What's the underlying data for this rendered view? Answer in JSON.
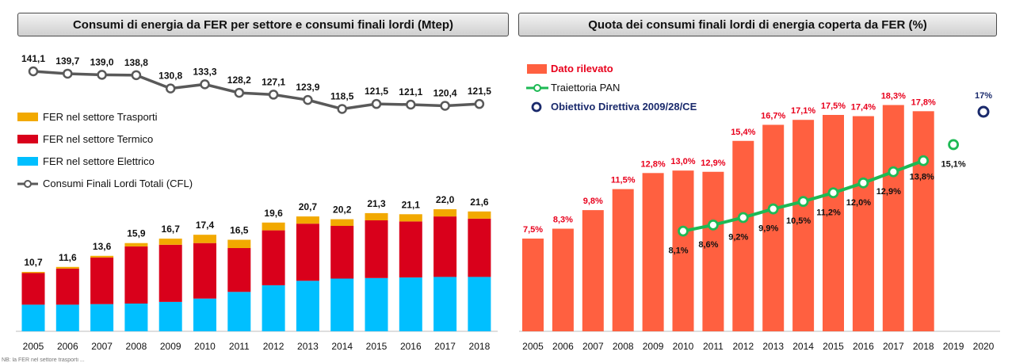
{
  "footnote": "NB: la FER nel settore trasporti ...",
  "chart_data": [
    {
      "type": "bar",
      "stacked": true,
      "title": "Consumi di energia da FER per settore e consumi finali lordi (Mtep)",
      "categories": [
        "2005",
        "2006",
        "2007",
        "2008",
        "2009",
        "2010",
        "2011",
        "2012",
        "2013",
        "2014",
        "2015",
        "2016",
        "2017",
        "2018"
      ],
      "series": [
        {
          "name": "FER nel settore Elettrico",
          "color": "#00bfff",
          "values": [
            4.8,
            4.8,
            4.9,
            5.0,
            5.3,
            5.9,
            7.1,
            8.3,
            9.1,
            9.5,
            9.6,
            9.7,
            9.8,
            9.8
          ]
        },
        {
          "name": "FER nel settore Termico",
          "color": "#d9001b",
          "values": [
            5.7,
            6.5,
            8.4,
            10.3,
            10.3,
            10.0,
            7.9,
            9.9,
            10.3,
            9.5,
            10.4,
            10.1,
            10.9,
            10.5
          ]
        },
        {
          "name": "FER nel settore Trasporti",
          "color": "#f2a900",
          "values": [
            0.2,
            0.3,
            0.3,
            0.6,
            1.1,
            1.5,
            1.5,
            1.4,
            1.3,
            1.2,
            1.3,
            1.3,
            1.3,
            1.3
          ]
        }
      ],
      "totals": [
        "10,7",
        "11,6",
        "13,6",
        "15,9",
        "16,7",
        "17,4",
        "16,5",
        "19,6",
        "20,7",
        "20,2",
        "21,3",
        "21,1",
        "22,0",
        "21,6"
      ],
      "line": {
        "name": "Consumi Finali Lordi Totali (CFL)",
        "color": "#595959",
        "values": [
          141.1,
          139.7,
          139.0,
          138.8,
          130.8,
          133.3,
          128.2,
          127.1,
          123.9,
          118.5,
          121.5,
          121.1,
          120.4,
          121.5
        ],
        "labels": [
          "141,1",
          "139,7",
          "139,0",
          "138,8",
          "130,8",
          "133,3",
          "128,2",
          "127,1",
          "123,9",
          "118,5",
          "121,5",
          "121,1",
          "120,4",
          "121,5"
        ]
      },
      "legend": [
        {
          "label": "FER nel settore Trasporti",
          "kind": "rect",
          "color": "#f2a900"
        },
        {
          "label": "FER nel settore Termico",
          "kind": "rect",
          "color": "#d9001b"
        },
        {
          "label": "FER nel settore Elettrico",
          "kind": "rect",
          "color": "#00bfff"
        },
        {
          "label": "Consumi Finali Lordi Totali (CFL)",
          "kind": "line",
          "color": "#595959"
        }
      ],
      "legend_position": "left",
      "grid": false
    },
    {
      "type": "bar",
      "title": "Quota dei consumi finali lordi di energia coperta da FER (%)",
      "categories": [
        "2005",
        "2006",
        "2007",
        "2008",
        "2009",
        "2010",
        "2011",
        "2012",
        "2013",
        "2014",
        "2015",
        "2016",
        "2017",
        "2018",
        "2019",
        "2020"
      ],
      "bars": {
        "name": "Dato rilevato",
        "color": "#ff6040",
        "label_color": "#e8001c",
        "values": [
          7.5,
          8.3,
          9.8,
          11.5,
          12.8,
          13.0,
          12.9,
          15.4,
          16.7,
          17.1,
          17.5,
          17.4,
          18.3,
          17.8,
          null,
          null
        ],
        "labels": [
          "7,5%",
          "8,3%",
          "9,8%",
          "11,5%",
          "12,8%",
          "13,0%",
          "12,9%",
          "15,4%",
          "16,7%",
          "17,1%",
          "17,5%",
          "17,4%",
          "18,3%",
          "17,8%",
          "",
          ""
        ]
      },
      "line": {
        "name": "Traiettoria PAN",
        "color": "#1db954",
        "values": [
          null,
          null,
          null,
          null,
          null,
          8.1,
          8.6,
          9.2,
          9.9,
          10.5,
          11.2,
          12.0,
          12.9,
          13.8,
          15.1,
          null
        ],
        "labels": [
          "",
          "",
          "",
          "",
          "",
          "8,1%",
          "8,6%",
          "9,2%",
          "9,9%",
          "10,5%",
          "11,2%",
          "12,0%",
          "12,9%",
          "13,8%",
          "15,1%",
          ""
        ]
      },
      "target": {
        "name": "Obiettivo Direttiva 2009/28/CE",
        "color": "#1a2a6c",
        "category": "2020",
        "value": 17,
        "label": "17%"
      },
      "legend": [
        {
          "label": "Dato rilevato",
          "kind": "rect",
          "color": "#ff6040",
          "text_color": "#e8001c"
        },
        {
          "label": "Traiettoria PAN",
          "kind": "line",
          "color": "#1db954",
          "text_color": "#111111"
        },
        {
          "label": "Obiettivo Direttiva 2009/28/CE",
          "kind": "circle",
          "color": "#1a2a6c",
          "text_color": "#1a2a6c"
        }
      ],
      "legend_position": "top-left",
      "grid": false
    }
  ]
}
